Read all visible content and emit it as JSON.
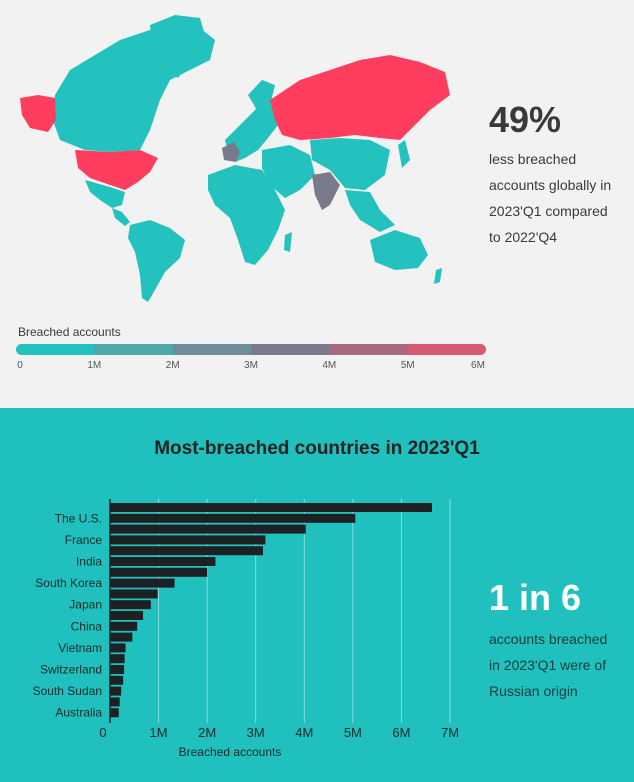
{
  "colors": {
    "teal": "#23c2bf",
    "red": "#ff3e5f",
    "grey": "#777a8a",
    "bar": "#1e2124",
    "top_bg": "#f2f2f2",
    "bottom_bg": "#1fc0bd"
  },
  "map_stat": {
    "value": "49%",
    "lines": [
      "less breached",
      "accounts globally in",
      "2023'Q1 compared",
      "to 2022'Q4"
    ]
  },
  "legend": {
    "title": "Breached accounts",
    "ticks": [
      "0",
      "1M",
      "2M",
      "3M",
      "4M",
      "5M",
      "6M"
    ],
    "colors": [
      "#23c2bf",
      "#4fa9a9",
      "#6d8e98",
      "#7a7a8c",
      "#a86a80",
      "#d85a72",
      "#ff3e5f"
    ]
  },
  "chart_stat": {
    "value": "1 in 6",
    "lines": [
      "accounts breached",
      "in 2023'Q1 were of",
      "Russian origin"
    ]
  },
  "chart_data": {
    "type": "bar",
    "orientation": "horizontal",
    "title": "Most-breached countries in 2023'Q1",
    "xlabel": "Breached accounts",
    "ylabel": "",
    "xlim": [
      0,
      7000000
    ],
    "xticks": [
      "0",
      "1M",
      "2M",
      "3M",
      "4M",
      "5M",
      "6M",
      "7M"
    ],
    "grid": true,
    "categories": [
      "",
      "The U.S.",
      "",
      "France",
      "",
      "India",
      "",
      "South Korea",
      "",
      "Japan",
      "",
      "China",
      "",
      "Vietnam",
      "",
      "Switzerland",
      "",
      "South Sudan",
      "",
      "Australia"
    ],
    "values": [
      6630000,
      5050000,
      4030000,
      3200000,
      3150000,
      2170000,
      2000000,
      1330000,
      980000,
      840000,
      680000,
      560000,
      460000,
      320000,
      300000,
      290000,
      270000,
      230000,
      200000,
      180000
    ]
  }
}
